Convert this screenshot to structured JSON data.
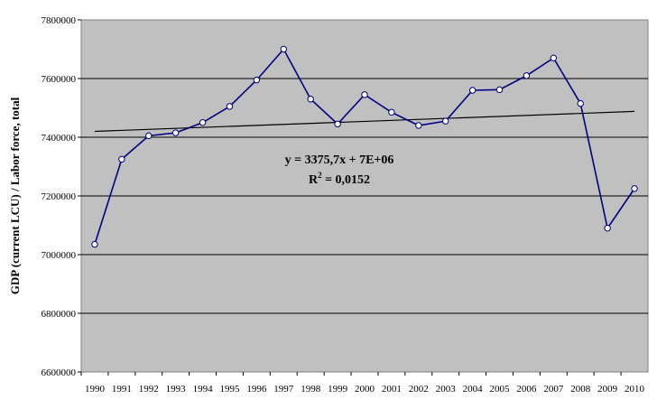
{
  "chart_data": {
    "type": "line",
    "title": "",
    "xlabel": "",
    "ylabel": "GDP (current LCU) / Labor force, total",
    "ylim": [
      6600000,
      7800000
    ],
    "yticks": [
      6600000,
      6800000,
      7000000,
      7200000,
      7400000,
      7600000,
      7800000
    ],
    "ytick_labels": [
      "6600000",
      "6800000",
      "7000000",
      "7200000",
      "7400000",
      "7600000",
      "7800000"
    ],
    "categories": [
      "1990",
      "1991",
      "1992",
      "1993",
      "1994",
      "1995",
      "1996",
      "1997",
      "1998",
      "1999",
      "2000",
      "2001",
      "2002",
      "2003",
      "2004",
      "2005",
      "2006",
      "2007",
      "2008",
      "2009",
      "2010"
    ],
    "series": [
      {
        "values": [
          7035000,
          7325000,
          7405000,
          7415000,
          7450000,
          7505000,
          7595000,
          7700000,
          7530000,
          7445000,
          7545000,
          7485000,
          7440000,
          7455000,
          7560000,
          7562000,
          7610000,
          7670000,
          7515000,
          7090000,
          7225000
        ],
        "color": "#000080"
      }
    ],
    "trendline": {
      "start": 7420000,
      "end": 7488000,
      "color": "#000000",
      "equation": "y = 3375,7x + 7E+06",
      "r2_prefix": "R",
      "r2_sup": "2",
      "r2_value": " = 0,0152"
    },
    "plot_background": "#c0c0c0",
    "grid": true,
    "legend": "none"
  }
}
